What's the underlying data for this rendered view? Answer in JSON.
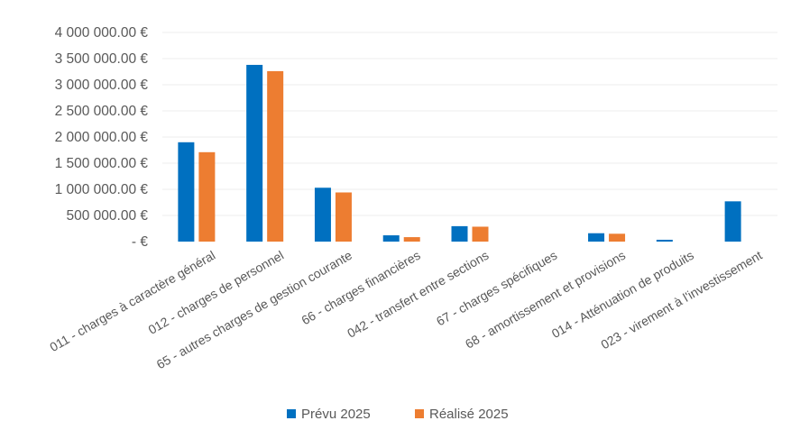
{
  "chart_data": {
    "type": "bar",
    "title": "",
    "xlabel": "",
    "ylabel": "",
    "ylim": [
      0,
      4000000
    ],
    "yticks": [
      {
        "value": 4000000,
        "label": "4 000 000.00 €"
      },
      {
        "value": 3500000,
        "label": "3 500 000.00 €"
      },
      {
        "value": 3000000,
        "label": "3 000 000.00 €"
      },
      {
        "value": 2500000,
        "label": "2 500 000.00 €"
      },
      {
        "value": 2000000,
        "label": "2 000 000.00 €"
      },
      {
        "value": 1500000,
        "label": "1 500 000.00 €"
      },
      {
        "value": 1000000,
        "label": "1 000 000.00 €"
      },
      {
        "value": 500000,
        "label": "500 000.00 €"
      },
      {
        "value": 0,
        "label": "-   €"
      }
    ],
    "categories": [
      "011 - charges à caractère général",
      "012 - charges de personnel",
      "65 - autres charges de gestion courante",
      "66 - charges financières",
      "042 - transfert entre sections",
      "67 - charges spécifiques",
      "68 - amortissement et provisions",
      "014 - Atténuation de produits",
      "023 - virement à l'investissement"
    ],
    "series": [
      {
        "name": "Prévu 2025",
        "color": "#0070C0",
        "values": [
          1900000,
          3380000,
          1030000,
          120000,
          295000,
          0,
          160000,
          35000,
          770000
        ]
      },
      {
        "name": "Réalisé 2025",
        "color": "#ED7D31",
        "values": [
          1710000,
          3260000,
          940000,
          85000,
          285000,
          0,
          150000,
          0,
          0
        ]
      }
    ],
    "grid": true,
    "legend_position": "bottom"
  }
}
